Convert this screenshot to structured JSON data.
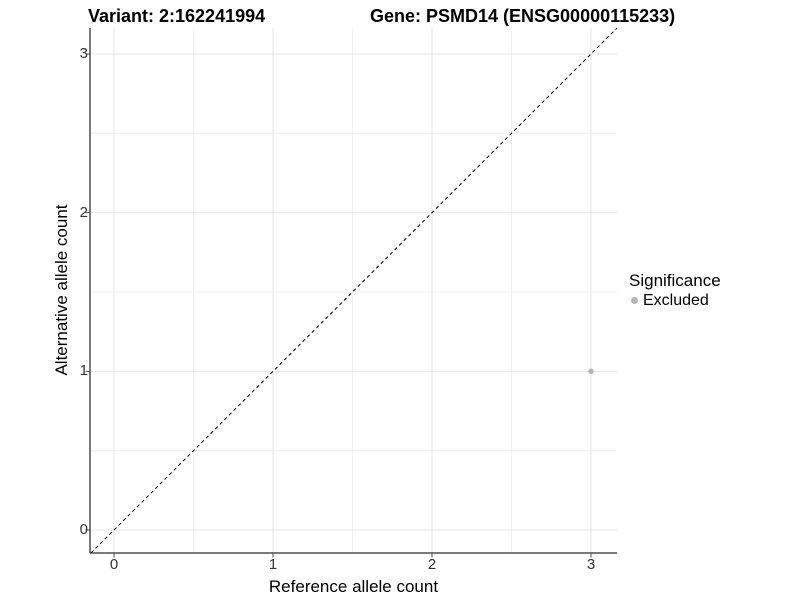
{
  "titles": {
    "variant": "Variant: 2:162241994",
    "gene": "Gene: PSMD14 (ENSG00000115233)"
  },
  "chart_data": {
    "type": "scatter",
    "title_left": "Variant: 2:162241994",
    "title_right": "Gene: PSMD14 (ENSG00000115233)",
    "xlabel": "Reference allele count",
    "ylabel": "Alternative allele count",
    "x_ticks": [
      0,
      1,
      2,
      3
    ],
    "y_ticks": [
      0,
      1,
      2,
      3
    ],
    "xlim": [
      -0.15,
      3.15
    ],
    "ylim": [
      -0.15,
      3.15
    ],
    "grid": "major+minor",
    "minor_grid_step": 0.5,
    "identity_line": {
      "style": "dashed",
      "slope": 1,
      "intercept": 0,
      "color": "#000000"
    },
    "points": [
      {
        "x": 3,
        "y": 1,
        "significance": "Excluded"
      }
    ],
    "legend": {
      "title": "Significance",
      "position": "right",
      "items": [
        {
          "label": "Excluded",
          "color": "#b5b5b5"
        }
      ]
    }
  },
  "colors": {
    "background": "#ffffff",
    "point_excluded": "#b5b5b5",
    "grid_major": "#e4e4e4",
    "grid_minor": "#f0f0f0",
    "axis_line": "#4d4d4d",
    "tick_text": "#333333",
    "dashed_line": "#000000"
  }
}
